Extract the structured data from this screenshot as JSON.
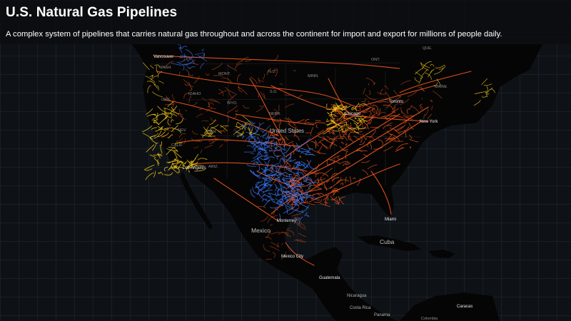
{
  "header": {
    "title": "U.S. Natural Gas Pipelines",
    "subtitle": "A complex system of pipelines that carries natural gas throughout and across the continent for import and export for millions of people daily."
  },
  "colors": {
    "background": "#0e1216",
    "land": "#050505",
    "grid": "#232c36",
    "pipeline_orange": "#ff5a1f",
    "pipeline_yellow": "#ffd21a",
    "pipeline_blue": "#3a7bff"
  },
  "labels": {
    "vancouver": "Vancouver",
    "wash": "WASH.",
    "mont": "MONT.",
    "nd": "N.D.",
    "minn": "MINN.",
    "que": "QUE.",
    "ont": "ONT.",
    "maine": "MAINE",
    "idaho": "IDAHO",
    "ore": "ORE.",
    "sd": "S.D.",
    "wyo": "WYO.",
    "toronto": "Toronto",
    "chicago": "Chicago",
    "new_york": "New York",
    "nebr": "NEBR.",
    "nev": "NEV.",
    "utah": "UTAH",
    "united_states": "United States",
    "calif": "CALIF.",
    "ariz": "ARIZ.",
    "los_angeles": "Los Angeles",
    "miami": "Miami",
    "monterrey": "Monterrey",
    "mexico": "Mexico",
    "cuba": "Cuba",
    "mexico_city": "Mexico City",
    "guatemala": "Guatemala",
    "nicaragua": "Nicaragua",
    "costa_rica": "Costa Rica",
    "panama": "Panama",
    "caracas": "Caracas",
    "colombia": "Colombia"
  }
}
